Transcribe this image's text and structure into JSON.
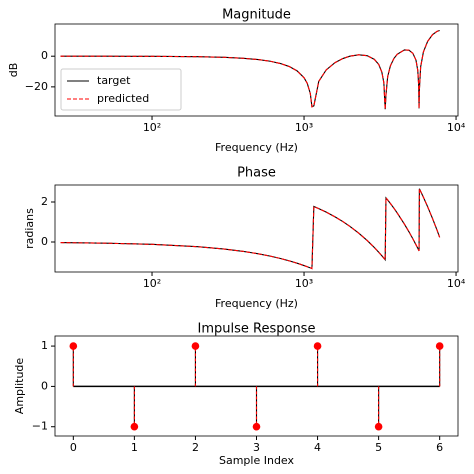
{
  "chart_data": [
    {
      "type": "line",
      "title": "Magnitude",
      "xlabel": "Frequency (Hz)",
      "ylabel": "dB",
      "xscale": "log",
      "xlim": [
        23,
        10300
      ],
      "xticks": [
        {
          "value": 100,
          "label": "10²"
        },
        {
          "value": 1000,
          "label": "10³"
        },
        {
          "value": 10000,
          "label": "10⁴"
        }
      ],
      "ylim": [
        -39,
        21
      ],
      "yticks": [
        {
          "value": -20,
          "label": "−20"
        },
        0
      ],
      "legend": "lower left",
      "x": [
        25,
        50,
        100,
        200,
        300,
        400,
        500,
        600,
        700,
        800,
        900,
        1000,
        1050,
        1100,
        1127,
        1160,
        1250,
        1400,
        1600,
        1800,
        2000,
        2286,
        2600,
        2900,
        3100,
        3250,
        3350,
        3418,
        3460,
        3550,
        3700,
        3900,
        4100,
        4571,
        4900,
        5200,
        5450,
        5600,
        5680,
        5708,
        5740,
        5850,
        6100,
        6500,
        7000,
        7500,
        7800
      ],
      "series": [
        {
          "name": "target",
          "color": "#000000",
          "linestyle": "solid",
          "values": [
            -0.01,
            -0.02,
            -0.08,
            -0.33,
            -0.75,
            -1.36,
            -2.19,
            -3.3,
            -4.78,
            -6.75,
            -9.57,
            -14.03,
            -17.72,
            -24.41,
            -33.0,
            -32.4,
            -16.41,
            -8.88,
            -4.18,
            -1.54,
            0,
            0.91,
            0.35,
            -2.04,
            -5.37,
            -10.39,
            -17.29,
            -34.6,
            -25.1,
            -13.29,
            -6.24,
            -1.54,
            1.21,
            4.1,
            3.94,
            1.89,
            -2.59,
            -9.26,
            -19.39,
            -34.0,
            -21.7,
            -6.9,
            2.82,
            9.65,
            14.03,
            16.22,
            16.79
          ]
        },
        {
          "name": "predicted",
          "color": "#ff0000",
          "linestyle": "dashed",
          "values": [
            -0.01,
            -0.02,
            -0.08,
            -0.33,
            -0.75,
            -1.36,
            -2.19,
            -3.3,
            -4.78,
            -6.75,
            -9.57,
            -14.03,
            -17.72,
            -24.41,
            -33.0,
            -32.4,
            -16.41,
            -8.88,
            -4.18,
            -1.54,
            0,
            0.91,
            0.35,
            -2.04,
            -5.37,
            -10.39,
            -17.29,
            -34.6,
            -25.1,
            -13.29,
            -6.24,
            -1.54,
            1.21,
            4.1,
            3.94,
            1.89,
            -2.59,
            -9.26,
            -19.39,
            -34.0,
            -21.7,
            -6.9,
            2.82,
            9.65,
            14.03,
            16.22,
            16.79
          ]
        }
      ]
    },
    {
      "type": "line",
      "title": "Phase",
      "xlabel": "Frequency (Hz)",
      "ylabel": "radians",
      "xscale": "log",
      "xlim": [
        23,
        10300
      ],
      "xticks": [
        {
          "value": 100,
          "label": "10²"
        },
        {
          "value": 1000,
          "label": "10³"
        },
        {
          "value": 10000,
          "label": "10⁴"
        }
      ],
      "ylim": [
        -1.5,
        2.85
      ],
      "yticks": [
        0,
        2
      ],
      "x": [
        25,
        50,
        100,
        200,
        300,
        400,
        500,
        600,
        700,
        800,
        900,
        1000,
        1050,
        1100,
        1127,
        1160,
        1250,
        1400,
        1600,
        1800,
        2000,
        2286,
        2600,
        2900,
        3100,
        3250,
        3350,
        3418,
        3460,
        3550,
        3700,
        3900,
        4100,
        4571,
        4900,
        5200,
        5450,
        5600,
        5680,
        5708,
        5740,
        5850,
        6100,
        6500,
        7000,
        7500,
        7800
      ],
      "series": [
        {
          "color": "#000000",
          "linestyle": "solid",
          "values": [
            -0.0295,
            -0.0589,
            -0.1178,
            -0.2356,
            -0.3534,
            -0.4712,
            -0.589,
            -0.7069,
            -0.8247,
            -0.9425,
            -1.0603,
            -1.1781,
            -1.237,
            -1.2959,
            -1.3277,
            1.775,
            1.669,
            1.4923,
            1.2566,
            1.021,
            0.7854,
            0.4485,
            0.0785,
            -0.2749,
            -0.5105,
            -0.6872,
            -0.805,
            -0.8851,
            2.207,
            2.1009,
            1.9242,
            1.6886,
            1.453,
            0.8981,
            0.5105,
            0.1571,
            -0.1374,
            -0.3141,
            -0.4084,
            -0.4413,
            2.6625,
            2.5329,
            2.2384,
            1.7672,
            1.1781,
            0.5891,
            0.2356
          ]
        },
        {
          "color": "#ff0000",
          "linestyle": "dashed",
          "values": [
            -0.0295,
            -0.0589,
            -0.1178,
            -0.2356,
            -0.3534,
            -0.4712,
            -0.589,
            -0.7069,
            -0.8247,
            -0.9425,
            -1.0603,
            -1.1781,
            -1.237,
            -1.2959,
            -1.3277,
            1.775,
            1.669,
            1.4923,
            1.2566,
            1.021,
            0.7854,
            0.4485,
            0.0785,
            -0.2749,
            -0.5105,
            -0.6872,
            -0.805,
            -0.8851,
            2.207,
            2.1009,
            1.9242,
            1.6886,
            1.453,
            0.8981,
            0.5105,
            0.1571,
            -0.1374,
            -0.3141,
            -0.4084,
            -0.4413,
            2.6625,
            2.5329,
            2.2384,
            1.7672,
            1.1781,
            0.5891,
            0.2356
          ]
        }
      ]
    },
    {
      "type": "stem",
      "title": "Impulse Response",
      "xlabel": "Sample Index",
      "ylabel": "Amplitude",
      "xlim": [
        -0.3,
        6.3
      ],
      "xticks": [
        0,
        1,
        2,
        3,
        4,
        5,
        6
      ],
      "ylim": [
        -1.23,
        1.25
      ],
      "yticks": [
        {
          "value": -1,
          "label": "−1"
        },
        0,
        1
      ],
      "x": [
        0,
        1,
        2,
        3,
        4,
        5,
        6
      ],
      "series": [
        {
          "color": "#000000",
          "linestyle": "solid",
          "values": [
            1,
            -1,
            1,
            -1,
            1,
            -1,
            1
          ]
        },
        {
          "color": "#ff0000",
          "linestyle": "dashed",
          "values": [
            1,
            -1,
            1,
            -1,
            1,
            -1,
            1
          ]
        }
      ]
    }
  ]
}
